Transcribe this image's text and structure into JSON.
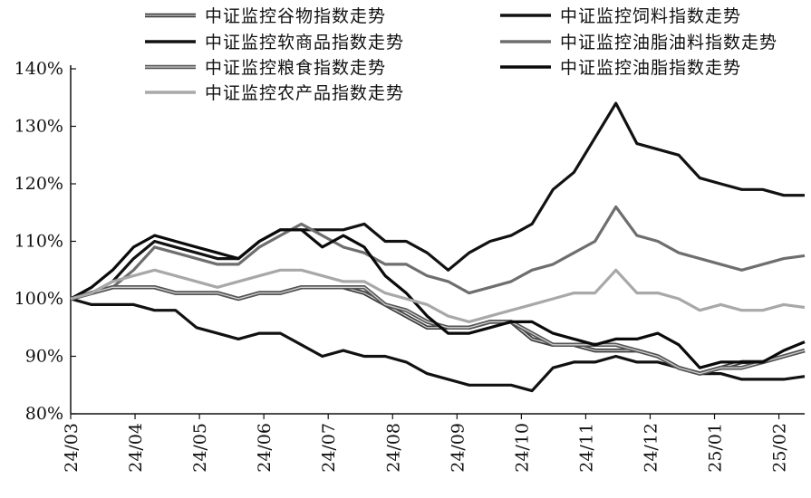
{
  "chart_data": {
    "type": "line",
    "title": "",
    "xlabel": "",
    "ylabel": "",
    "ylim": [
      80,
      140
    ],
    "y_ticks": [
      "80%",
      "90%",
      "100%",
      "110%",
      "120%",
      "130%",
      "140%"
    ],
    "x_tick_labels": [
      "24/03",
      "24/04",
      "24/05",
      "24/06",
      "24/07",
      "24/08",
      "24/09",
      "24/10",
      "24/11",
      "24/12",
      "25/01",
      "25/02"
    ],
    "grid": false,
    "legend_position": "top",
    "legend_entries": [
      "中证监控谷物指数走势",
      "中证监控饲料指数走势",
      "中证监控软商品指数走势",
      "中证监控油脂油料指数走势",
      "中证监控粮食指数走势",
      "中证监控油脂指数走势",
      "中证监控农产品指数走势"
    ],
    "x": [
      "24/03",
      "24/03",
      "24/03",
      "24/04",
      "24/04",
      "24/04",
      "24/05",
      "24/05",
      "24/05",
      "24/06",
      "24/06",
      "24/06",
      "24/07",
      "24/07",
      "24/07",
      "24/08",
      "24/08",
      "24/08",
      "24/09",
      "24/09",
      "24/09",
      "24/10",
      "24/10",
      "24/10",
      "24/11",
      "24/11",
      "24/11",
      "24/12",
      "24/12",
      "24/12",
      "25/01",
      "25/01",
      "25/01",
      "25/02",
      "25/02",
      "25/02"
    ],
    "series": [
      {
        "name": "中证监控谷物指数走势",
        "color": "#3a3a3a",
        "style": "double",
        "values": [
          100,
          101,
          102,
          102,
          102,
          101,
          101,
          101,
          100,
          101,
          101,
          102,
          102,
          102,
          101,
          99,
          97,
          95,
          95,
          95,
          96,
          96,
          93,
          92,
          92,
          91,
          91,
          91,
          90,
          88,
          87,
          88,
          89,
          89,
          90,
          91
        ]
      },
      {
        "name": "中证监控饲料指数走势",
        "color": "#111111",
        "style": "solid",
        "values": [
          100,
          101,
          103,
          107,
          110,
          109,
          108,
          107,
          107,
          110,
          112,
          112,
          112,
          112,
          113,
          110,
          110,
          108,
          105,
          108,
          110,
          111,
          113,
          119,
          122,
          128,
          134,
          127,
          126,
          125,
          121,
          120,
          119,
          119,
          118,
          118
        ]
      },
      {
        "name": "中证监控软商品指数走势",
        "color": "#111111",
        "style": "solid",
        "values": [
          100,
          99,
          99,
          99,
          98,
          98,
          95,
          94,
          93,
          94,
          94,
          92,
          90,
          91,
          90,
          90,
          89,
          87,
          86,
          85,
          85,
          85,
          84,
          88,
          89,
          89,
          90,
          89,
          89,
          88,
          87,
          87,
          86,
          86,
          86,
          86.5
        ]
      },
      {
        "name": "中证监控油脂油料指数走势",
        "color": "#6e6e6e",
        "style": "solid",
        "values": [
          100,
          101,
          102,
          105,
          109,
          108,
          107,
          106,
          106,
          109,
          111,
          113,
          111,
          109,
          108,
          106,
          106,
          104,
          103,
          101,
          102,
          103,
          105,
          106,
          108,
          110,
          116,
          111,
          110,
          108,
          107,
          106,
          105,
          106,
          107,
          107.5
        ]
      },
      {
        "name": "中证监控粮食指数走势",
        "color": "#555555",
        "style": "double",
        "values": [
          100,
          101,
          102,
          102,
          102,
          101,
          101,
          101,
          100,
          101,
          101,
          102,
          102,
          102,
          102,
          99,
          98,
          96,
          95,
          95,
          96,
          96,
          94,
          92,
          92,
          92,
          92,
          91,
          90,
          88,
          87,
          88,
          88,
          89,
          90,
          91
        ]
      },
      {
        "name": "中证监控油脂指数走势",
        "color": "#0a0a0a",
        "style": "solid",
        "values": [
          100,
          102,
          105,
          109,
          111,
          110,
          109,
          108,
          107,
          110,
          112,
          112,
          109,
          111,
          109,
          104,
          101,
          97,
          94,
          94,
          95,
          96,
          96,
          94,
          93,
          92,
          93,
          93,
          94,
          92,
          88,
          89,
          89,
          89,
          91,
          92.5
        ]
      },
      {
        "name": "中证监控农产品指数走势",
        "color": "#a8a8a8",
        "style": "solid",
        "values": [
          100,
          101,
          103,
          104,
          105,
          104,
          103,
          102,
          103,
          104,
          105,
          105,
          104,
          103,
          103,
          101,
          100,
          99,
          97,
          96,
          97,
          98,
          99,
          100,
          101,
          101,
          105,
          101,
          101,
          100,
          98,
          99,
          98,
          98,
          99,
          98.5
        ]
      }
    ]
  }
}
